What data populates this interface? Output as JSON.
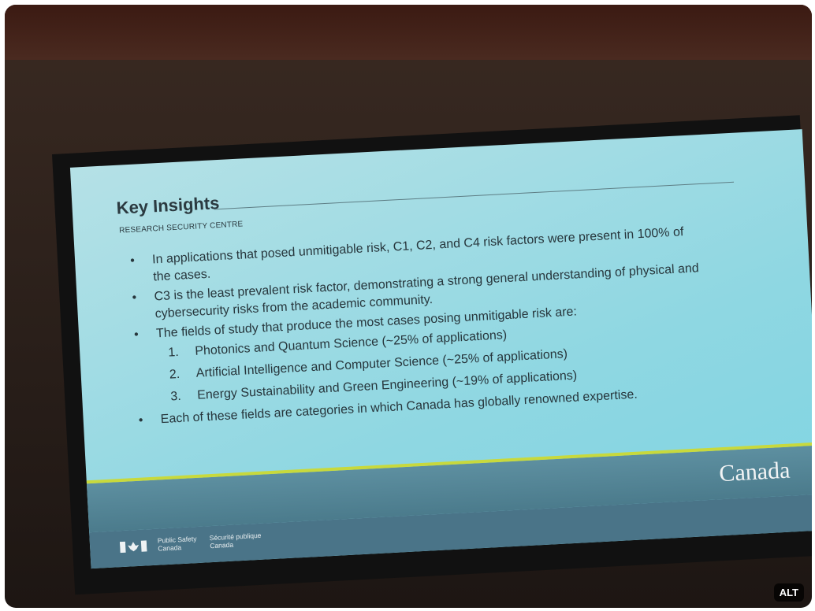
{
  "slide": {
    "title": "Key Insights",
    "subtitle": "RESEARCH SECURITY CENTRE",
    "bullets": [
      "In applications that posed unmitigable risk, C1, C2, and C4 risk factors were present in 100% of the cases.",
      "C3 is the least prevalent risk factor, demonstrating a strong general understanding of physical and cybersecurity risks from the academic community.",
      "The fields of study that produce the most cases posing unmitigable risk are:",
      "Each of these fields are categories in which Canada has globally renowned expertise."
    ],
    "sub_items": [
      {
        "number": "1.",
        "text": "Photonics and Quantum Science (~25% of applications)"
      },
      {
        "number": "2.",
        "text": "Artificial Intelligence and Computer Science (~25% of applications)"
      },
      {
        "number": "3.",
        "text": "Energy Sustainability and Green Engineering (~19% of applications)"
      }
    ],
    "footer": {
      "english": [
        "Public Safety",
        "Canada"
      ],
      "french": [
        "Sécurité publique",
        "Canada"
      ],
      "wordmark": "Canada"
    }
  },
  "badge": "ALT"
}
